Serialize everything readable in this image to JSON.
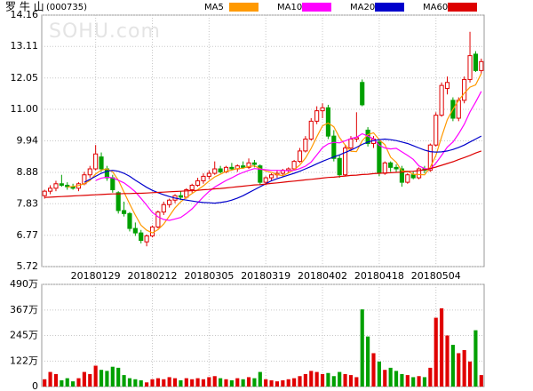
{
  "chart_data": {
    "type": "candlestick",
    "title": "罗 牛 山",
    "code": "(000735)",
    "watermark": "SOHU.com",
    "up_color": "#e00000",
    "down_color": "#00a000",
    "grid": true,
    "categories": [
      null,
      null,
      null,
      null,
      null,
      null,
      null,
      null,
      null,
      "20180129",
      null,
      null,
      null,
      null,
      null,
      null,
      null,
      null,
      null,
      "20180212",
      null,
      null,
      null,
      null,
      null,
      null,
      null,
      null,
      null,
      "20180305",
      null,
      null,
      null,
      null,
      null,
      null,
      null,
      null,
      null,
      "20180319",
      null,
      null,
      null,
      null,
      null,
      null,
      null,
      null,
      null,
      "20180402",
      null,
      null,
      null,
      null,
      null,
      null,
      null,
      null,
      null,
      "20180418",
      null,
      null,
      null,
      null,
      null,
      null,
      null,
      null,
      null,
      "20180504",
      null,
      null,
      null,
      null,
      null,
      null,
      null,
      null
    ],
    "ylim": [
      5.72,
      14.16
    ],
    "yticks": [
      5.72,
      6.77,
      7.83,
      8.88,
      9.94,
      {
        "value": 11,
        "label": "11.00"
      },
      12.05,
      13.11,
      14.16
    ],
    "ohlc": [
      [
        8.1,
        8.3,
        8.0,
        8.25
      ],
      [
        8.25,
        8.45,
        8.15,
        8.35
      ],
      [
        8.35,
        8.6,
        8.25,
        8.5
      ],
      [
        8.5,
        8.8,
        8.4,
        8.45
      ],
      [
        8.45,
        8.55,
        8.3,
        8.4
      ],
      [
        8.4,
        8.5,
        8.3,
        8.35
      ],
      [
        8.35,
        8.55,
        8.25,
        8.5
      ],
      [
        8.5,
        8.9,
        8.45,
        8.8
      ],
      [
        8.8,
        9.1,
        8.7,
        9.0
      ],
      [
        9.0,
        9.8,
        8.95,
        9.5
      ],
      [
        9.4,
        9.55,
        8.9,
        9.0
      ],
      [
        9.0,
        9.1,
        8.6,
        8.7
      ],
      [
        8.7,
        8.8,
        8.2,
        8.3
      ],
      [
        8.2,
        8.25,
        7.5,
        7.6
      ],
      [
        7.6,
        7.9,
        7.4,
        7.5
      ],
      [
        7.5,
        7.55,
        6.9,
        7.0
      ],
      [
        7.0,
        7.2,
        6.75,
        6.85
      ],
      [
        6.85,
        6.95,
        6.5,
        6.6
      ],
      [
        6.55,
        6.8,
        6.4,
        6.75
      ],
      [
        6.75,
        7.1,
        6.7,
        7.05
      ],
      [
        7.05,
        7.6,
        7.0,
        7.55
      ],
      [
        7.55,
        7.9,
        7.45,
        7.8
      ],
      [
        7.8,
        8.0,
        7.7,
        7.95
      ],
      [
        7.95,
        8.15,
        7.85,
        8.1
      ],
      [
        8.1,
        8.25,
        7.95,
        8.05
      ],
      [
        8.05,
        8.35,
        8.0,
        8.3
      ],
      [
        8.3,
        8.5,
        8.2,
        8.45
      ],
      [
        8.45,
        8.7,
        8.4,
        8.6
      ],
      [
        8.6,
        8.85,
        8.5,
        8.75
      ],
      [
        8.75,
        8.95,
        8.65,
        8.85
      ],
      [
        8.85,
        9.25,
        8.8,
        9.0
      ],
      [
        9.0,
        9.1,
        8.85,
        8.9
      ],
      [
        8.9,
        9.1,
        8.85,
        9.05
      ],
      [
        9.05,
        9.2,
        8.95,
        9.0
      ],
      [
        9.0,
        9.15,
        8.9,
        9.1
      ],
      [
        9.1,
        9.25,
        9.0,
        9.05
      ],
      [
        9.05,
        9.35,
        9.0,
        9.2
      ],
      [
        9.2,
        9.3,
        9.05,
        9.15
      ],
      [
        9.1,
        9.15,
        8.45,
        8.55
      ],
      [
        8.55,
        8.75,
        8.45,
        8.7
      ],
      [
        8.7,
        8.85,
        8.6,
        8.8
      ],
      [
        8.8,
        8.95,
        8.7,
        8.85
      ],
      [
        8.85,
        9.0,
        8.75,
        8.95
      ],
      [
        8.95,
        9.05,
        8.85,
        9.0
      ],
      [
        9.0,
        9.3,
        8.95,
        9.25
      ],
      [
        9.25,
        9.7,
        9.2,
        9.6
      ],
      [
        9.6,
        10.1,
        9.55,
        10.0
      ],
      [
        10.0,
        10.7,
        9.95,
        10.6
      ],
      [
        10.6,
        11.1,
        10.5,
        10.95
      ],
      [
        10.95,
        11.2,
        10.7,
        11.05
      ],
      [
        11.05,
        11.15,
        10.0,
        10.1
      ],
      [
        10.1,
        10.3,
        9.25,
        9.35
      ],
      [
        9.35,
        9.45,
        8.7,
        8.8
      ],
      [
        8.8,
        9.8,
        8.75,
        9.7
      ],
      [
        9.7,
        10.1,
        9.6,
        10.0
      ],
      [
        10.0,
        10.9,
        9.9,
        10.05
      ],
      [
        11.9,
        12.0,
        11.1,
        11.15
      ],
      [
        10.3,
        10.4,
        9.75,
        9.85
      ],
      [
        9.85,
        10.1,
        9.7,
        10.0
      ],
      [
        9.9,
        10.0,
        8.75,
        8.85
      ],
      [
        8.85,
        9.25,
        8.8,
        9.2
      ],
      [
        9.2,
        9.25,
        8.9,
        9.05
      ],
      [
        9.05,
        9.15,
        8.9,
        9.0
      ],
      [
        9.0,
        9.1,
        8.4,
        8.55
      ],
      [
        8.55,
        8.85,
        8.5,
        8.8
      ],
      [
        8.8,
        8.9,
        8.65,
        8.7
      ],
      [
        8.7,
        9.05,
        8.65,
        9.0
      ],
      [
        9.0,
        9.1,
        8.85,
        8.95
      ],
      [
        8.95,
        9.85,
        8.9,
        9.8
      ],
      [
        9.8,
        10.9,
        9.75,
        10.8
      ],
      [
        10.8,
        11.9,
        10.75,
        11.8
      ],
      [
        11.7,
        12.1,
        11.5,
        11.9
      ],
      [
        11.3,
        11.4,
        10.6,
        10.7
      ],
      [
        10.7,
        11.4,
        10.6,
        11.3
      ],
      [
        11.3,
        12.1,
        11.2,
        12.0
      ],
      [
        12.0,
        13.6,
        11.9,
        12.8
      ],
      [
        12.85,
        12.95,
        12.25,
        12.3
      ],
      [
        12.3,
        12.7,
        12.2,
        12.6
      ]
    ],
    "series": [
      {
        "name": "MA5",
        "color": "#ff9900",
        "values": [
          null,
          null,
          null,
          null,
          8.39,
          8.41,
          8.44,
          8.5,
          8.61,
          8.83,
          8.96,
          9.0,
          8.9,
          8.62,
          8.22,
          7.82,
          7.45,
          7.11,
          6.94,
          6.85,
          6.96,
          7.15,
          7.42,
          7.69,
          7.89,
          8.04,
          8.17,
          8.3,
          8.43,
          8.59,
          8.73,
          8.82,
          8.91,
          8.96,
          9.01,
          9.02,
          9.08,
          9.1,
          9.01,
          8.93,
          8.88,
          8.81,
          8.77,
          8.86,
          8.97,
          9.13,
          9.36,
          9.69,
          10.08,
          10.44,
          10.54,
          10.41,
          10.05,
          9.8,
          9.59,
          9.58,
          9.94,
          10.15,
          10.21,
          9.98,
          9.81,
          9.39,
          9.22,
          8.93,
          8.92,
          8.82,
          8.81,
          8.8,
          9.05,
          9.45,
          10.07,
          10.65,
          11.0,
          11.3,
          11.54,
          11.74,
          11.82,
          12.2
        ]
      },
      {
        "name": "MA10",
        "color": "#ff00ff",
        "values": [
          null,
          null,
          null,
          null,
          null,
          null,
          null,
          null,
          null,
          8.61,
          8.69,
          8.72,
          8.7,
          8.62,
          8.53,
          8.39,
          8.23,
          8.01,
          7.78,
          7.54,
          7.39,
          7.3,
          7.27,
          7.32,
          7.37,
          7.5,
          7.66,
          7.86,
          8.06,
          8.24,
          8.39,
          8.5,
          8.61,
          8.7,
          8.8,
          8.88,
          8.95,
          9.01,
          8.99,
          8.97,
          8.95,
          8.95,
          8.94,
          8.94,
          8.95,
          9.01,
          9.09,
          9.23,
          9.47,
          9.71,
          9.84,
          9.89,
          9.87,
          9.94,
          10.02,
          10.06,
          10.18,
          10.1,
          10.01,
          9.79,
          9.7,
          9.67,
          9.69,
          9.57,
          9.45,
          9.32,
          9.1,
          9.01,
          8.99,
          9.19,
          9.45,
          9.73,
          9.9,
          10.18,
          10.5,
          10.91,
          11.24,
          11.6
        ]
      },
      {
        "name": "MA20",
        "color": "#0000cc",
        "values": [
          null,
          null,
          null,
          null,
          null,
          null,
          null,
          8.55,
          8.65,
          8.75,
          8.85,
          8.92,
          8.95,
          8.92,
          8.85,
          8.75,
          8.62,
          8.5,
          8.38,
          8.28,
          8.2,
          8.13,
          8.07,
          8.02,
          7.98,
          7.95,
          7.92,
          7.89,
          7.87,
          7.86,
          7.85,
          7.87,
          7.9,
          7.95,
          8.02,
          8.1,
          8.2,
          8.3,
          8.4,
          8.5,
          8.6,
          8.67,
          8.73,
          8.79,
          8.85,
          8.92,
          9.0,
          9.08,
          9.17,
          9.25,
          9.33,
          9.4,
          9.47,
          9.55,
          9.63,
          9.72,
          9.82,
          9.9,
          9.95,
          9.98,
          10.0,
          9.98,
          9.95,
          9.9,
          9.85,
          9.78,
          9.7,
          9.63,
          9.58,
          9.56,
          9.57,
          9.6,
          9.65,
          9.72,
          9.8,
          9.9,
          10.0,
          10.1
        ]
      },
      {
        "name": "MA60",
        "color": "#dd0000",
        "values": [
          8.04,
          8.05,
          8.06,
          8.07,
          8.08,
          8.09,
          8.1,
          8.11,
          8.12,
          8.13,
          8.14,
          8.15,
          8.16,
          8.16,
          8.17,
          8.17,
          8.18,
          8.18,
          8.19,
          8.2,
          8.21,
          8.22,
          8.23,
          8.24,
          8.25,
          8.26,
          8.27,
          8.28,
          8.3,
          8.31,
          8.33,
          8.34,
          8.36,
          8.38,
          8.4,
          8.42,
          8.44,
          8.46,
          8.47,
          8.49,
          8.51,
          8.53,
          8.55,
          8.57,
          8.59,
          8.61,
          8.63,
          8.65,
          8.67,
          8.69,
          8.71,
          8.72,
          8.74,
          8.76,
          8.78,
          8.79,
          8.81,
          8.82,
          8.84,
          8.85,
          8.86,
          8.87,
          8.88,
          8.89,
          8.91,
          8.92,
          8.94,
          8.97,
          9.01,
          9.06,
          9.12,
          9.18,
          9.24,
          9.31,
          9.38,
          9.45,
          9.53,
          9.6
        ]
      }
    ],
    "volume": [
      35,
      70,
      60,
      30,
      40,
      25,
      40,
      70,
      60,
      100,
      80,
      75,
      95,
      90,
      55,
      40,
      35,
      30,
      20,
      35,
      40,
      35,
      45,
      40,
      30,
      40,
      35,
      40,
      35,
      45,
      50,
      40,
      35,
      30,
      40,
      35,
      45,
      40,
      70,
      35,
      30,
      25,
      30,
      35,
      40,
      50,
      60,
      75,
      70,
      60,
      65,
      50,
      70,
      60,
      55,
      45,
      370,
      240,
      160,
      120,
      80,
      90,
      75,
      60,
      55,
      45,
      50,
      45,
      90,
      330,
      375,
      245,
      200,
      160,
      175,
      120,
      270,
      55
    ],
    "vol_ylim": [
      0,
      490
    ],
    "vol_ticks": [
      0,
      {
        "value": 122,
        "label": "122万"
      },
      {
        "value": 245,
        "label": "245万"
      },
      {
        "value": 367,
        "label": "367万"
      },
      {
        "value": 490,
        "label": "490万"
      }
    ]
  }
}
